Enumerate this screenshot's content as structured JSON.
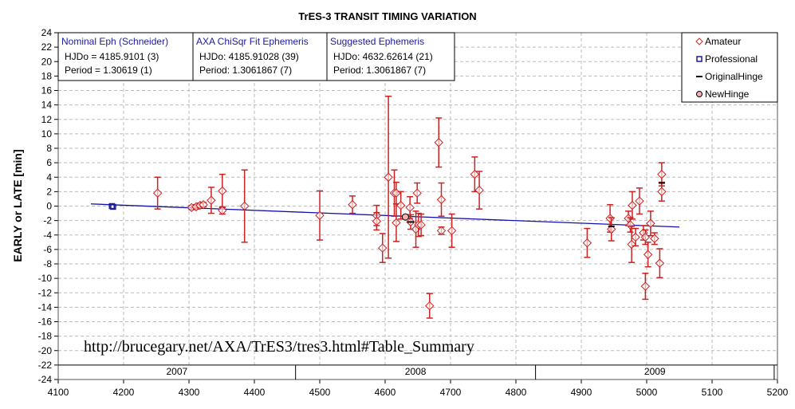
{
  "chart_data": {
    "type": "scatter",
    "title": "TrES-3 TRANSIT TIMING VARIATION",
    "ylabel": "EARLY or LATE [min]",
    "xlabel": "",
    "xlim": [
      4100,
      5200
    ],
    "ylim": [
      -24,
      24
    ],
    "x_ticks": [
      4100,
      4200,
      4300,
      4400,
      4500,
      4600,
      4700,
      4800,
      4900,
      5000,
      5100,
      5200
    ],
    "y_ticks": [
      24,
      22,
      20,
      18,
      16,
      14,
      12,
      10,
      8,
      6,
      4,
      2,
      0,
      -2,
      -4,
      -6,
      -8,
      -10,
      -12,
      -14,
      -16,
      -18,
      -20,
      -22,
      -24
    ],
    "grid": true,
    "legend_placement": "top-right",
    "legend": [
      "Amateur",
      "Professional",
      "OriginalHinge",
      "NewHinge"
    ],
    "colors": {
      "amateur": "#cc2222",
      "professional": "#1a1aa0",
      "line": "#1010b0",
      "hinge": "#000000"
    },
    "years": [
      {
        "label": "2007",
        "from": 4100,
        "to": 4463
      },
      {
        "label": "2008",
        "from": 4463,
        "to": 4830
      },
      {
        "label": "2009",
        "from": 4830,
        "to": 5195
      }
    ],
    "url_annotation": "http://brucegary.net/AXA/TrES3/tres3.html#Table_Summary",
    "ephemeris_boxes": [
      {
        "title": "Nominal Eph (Schneider)",
        "line1": "HJDo = 4185.9101 (3)",
        "line2": "Period = 1.30619 (1)"
      },
      {
        "title": "AXA ChiSqr Fit Ephemeris",
        "line1": "HJDo:  4185.91028 (39)",
        "line2": "Period: 1.3061867 (7)"
      },
      {
        "title": "Suggested Ephemeris",
        "line1": "HJDo:  4632.62614 (21)",
        "line2": "Period: 1.3061867 (7)"
      }
    ],
    "series": [
      {
        "name": "Amateur",
        "points": [
          [
            4252,
            1.8,
            2.2
          ],
          [
            4304,
            -0.2,
            0.3
          ],
          [
            4311,
            -0.1,
            0.3
          ],
          [
            4317,
            0.1,
            0.3
          ],
          [
            4322,
            0.2,
            0.3
          ],
          [
            4334,
            0.8,
            1.8
          ],
          [
            4351,
            2.1,
            2.3
          ],
          [
            4351,
            -0.6,
            0.5
          ],
          [
            4385,
            0,
            5
          ],
          [
            4500,
            -1.3,
            3.4
          ],
          [
            4550,
            0.2,
            1.2
          ],
          [
            4587,
            -1.3,
            1.4
          ],
          [
            4587,
            -2.1,
            1.2
          ],
          [
            4596,
            -5.8,
            2
          ],
          [
            4605,
            4.0,
            11.2
          ],
          [
            4614,
            1.8,
            3.2
          ],
          [
            4617,
            1.8,
            1.5
          ],
          [
            4617,
            -2.3,
            2.6
          ],
          [
            4624,
            0.1,
            1.9
          ],
          [
            4638,
            -0.2,
            1.5
          ],
          [
            4639,
            -2.2,
            1.0
          ],
          [
            4647,
            -3.2,
            2.5
          ],
          [
            4649,
            1.8,
            1.4
          ],
          [
            4651,
            -2.6,
            1.6
          ],
          [
            4655,
            -2.6,
            1.5
          ],
          [
            4668,
            -13.8,
            1.7
          ],
          [
            4682,
            8.8,
            3.4
          ],
          [
            4686,
            0.9,
            2.3
          ],
          [
            4686,
            -3.4,
            0.5
          ],
          [
            4702,
            -3.4,
            2.3
          ],
          [
            4737,
            4.4,
            2.4
          ],
          [
            4744,
            2.2,
            2.6
          ],
          [
            4909,
            -5.1,
            2
          ],
          [
            4944,
            -1.7,
            1.9
          ],
          [
            4946,
            -3.2,
            1.6
          ],
          [
            4972,
            -1.7,
            1.0
          ],
          [
            4975,
            -2.6,
            1.0
          ],
          [
            4978,
            0.1,
            1.9
          ],
          [
            4977,
            -5.3,
            2.5
          ],
          [
            4983,
            -4.3,
            1.2
          ],
          [
            4989,
            0.7,
            1.8
          ],
          [
            4995,
            -3.7,
            1.0
          ],
          [
            4998,
            -4.3,
            1.0
          ],
          [
            4998,
            -11.1,
            1.8
          ],
          [
            5002,
            -6.7,
            1.7
          ],
          [
            5006,
            -2.4,
            1.7
          ],
          [
            5012,
            -4.5,
            0.8
          ],
          [
            5020,
            -7.9,
            2
          ],
          [
            5023,
            4.4,
            1.6
          ],
          [
            5023,
            2.0,
            1.3
          ]
        ]
      },
      {
        "name": "Professional",
        "points": [
          [
            4182,
            0,
            0.2
          ],
          [
            4184,
            -0.1,
            0.2
          ]
        ]
      },
      {
        "name": "OriginalHinge",
        "points": [
          [
            4639,
            -2.2
          ],
          [
            4946,
            -2.8
          ],
          [
            5023,
            3.2
          ]
        ]
      },
      {
        "name": "NewHinge",
        "points": [
          [
            4631,
            -1.5
          ]
        ]
      }
    ],
    "fit_line": {
      "x": [
        4150,
        5050
      ],
      "y": [
        0.3,
        -2.9
      ]
    }
  }
}
